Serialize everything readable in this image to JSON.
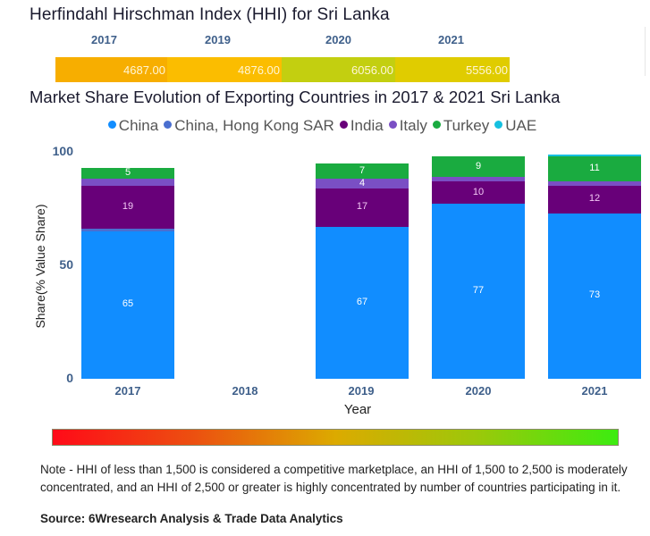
{
  "hhi": {
    "title": "Herfindahl Hirschman Index (HHI) for Sri Lanka",
    "cells": [
      {
        "year": "2017",
        "value": "4687.00",
        "color": "#f7ae00"
      },
      {
        "year": "2019",
        "value": "4876.00",
        "color": "#fbbd00"
      },
      {
        "year": "2020",
        "value": "6056.00",
        "color": "#c3cf10"
      },
      {
        "year": "2021",
        "value": "5556.00",
        "color": "#e0cc00"
      }
    ]
  },
  "chart_data": {
    "type": "bar",
    "stacked": true,
    "title": "Market Share Evolution of Exporting Countries in 2017 & 2021 Sri Lanka",
    "xlabel": "Year",
    "ylabel": "Share(% Value Share)",
    "ylim": [
      0,
      100
    ],
    "yticks": [
      "0",
      "50",
      "100"
    ],
    "categories": [
      "2017",
      "2018",
      "2019",
      "2020",
      "2021"
    ],
    "legend_position": "top",
    "series": [
      {
        "name": "China",
        "color": "#118dff",
        "values": [
          65,
          null,
          67,
          77,
          73
        ],
        "labels": [
          "65",
          "",
          "67",
          "77",
          "73"
        ]
      },
      {
        "name": "China, Hong Kong SAR",
        "color": "#4a6fd0",
        "values": [
          1,
          null,
          0,
          0,
          0
        ],
        "labels": [
          "",
          "",
          "",
          "",
          ""
        ]
      },
      {
        "name": "India",
        "color": "#680079",
        "values": [
          19,
          null,
          17,
          10,
          12
        ],
        "labels": [
          "19",
          "",
          "17",
          "10",
          "12"
        ]
      },
      {
        "name": "Italy",
        "color": "#7a4fc4",
        "values": [
          3,
          null,
          4,
          2,
          2
        ],
        "labels": [
          "",
          "",
          "4",
          "",
          ""
        ]
      },
      {
        "name": "Turkey",
        "color": "#1aab40",
        "values": [
          5,
          null,
          7,
          9,
          11
        ],
        "labels": [
          "5",
          "",
          "7",
          "9",
          "11"
        ]
      },
      {
        "name": "UAE",
        "color": "#15c0e0",
        "values": [
          0,
          null,
          0,
          0,
          1
        ],
        "labels": [
          "",
          "",
          "",
          "",
          ""
        ]
      }
    ]
  },
  "scale": {
    "gradient_colors": [
      "#ff0a18",
      "#ec5010",
      "#dcaa00",
      "#9cc80a",
      "#3cec10"
    ]
  },
  "note": "Note - HHI of less than 1,500 is considered a competitive marketplace, an HHI of 1,500 to 2,500 is moderately concentrated, and an HHI of 2,500 or greater is highly concentrated by number of countries participating in it.",
  "source": "Source: 6Wresearch Analysis & Trade Data Analytics"
}
